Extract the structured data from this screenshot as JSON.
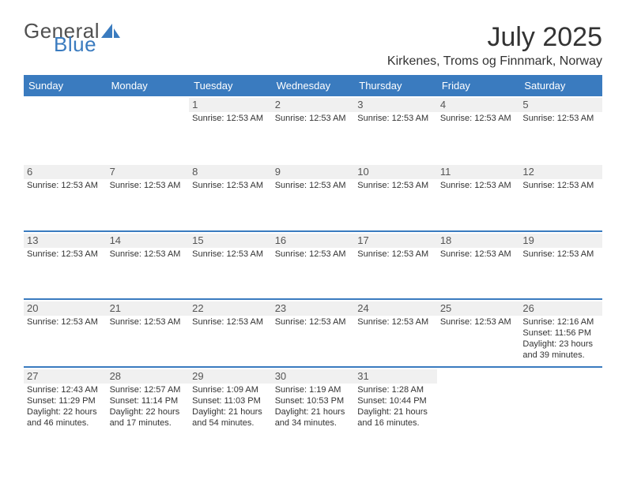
{
  "logo": {
    "text1": "General",
    "text2": "Blue"
  },
  "title": "July 2025",
  "subtitle": "Kirkenes, Troms og Finnmark, Norway",
  "headers_bg": "#3a7bbf",
  "daynum_bg": "#f0f0f0",
  "border_color": "#3a7bbf",
  "days": [
    "Sunday",
    "Monday",
    "Tuesday",
    "Wednesday",
    "Thursday",
    "Friday",
    "Saturday"
  ],
  "weeks": [
    [
      {
        "n": "",
        "t": ""
      },
      {
        "n": "",
        "t": ""
      },
      {
        "n": "1",
        "t": "Sunrise: 12:53 AM"
      },
      {
        "n": "2",
        "t": "Sunrise: 12:53 AM"
      },
      {
        "n": "3",
        "t": "Sunrise: 12:53 AM"
      },
      {
        "n": "4",
        "t": "Sunrise: 12:53 AM"
      },
      {
        "n": "5",
        "t": "Sunrise: 12:53 AM"
      }
    ],
    [
      {
        "n": "6",
        "t": "Sunrise: 12:53 AM"
      },
      {
        "n": "7",
        "t": "Sunrise: 12:53 AM"
      },
      {
        "n": "8",
        "t": "Sunrise: 12:53 AM"
      },
      {
        "n": "9",
        "t": "Sunrise: 12:53 AM"
      },
      {
        "n": "10",
        "t": "Sunrise: 12:53 AM"
      },
      {
        "n": "11",
        "t": "Sunrise: 12:53 AM"
      },
      {
        "n": "12",
        "t": "Sunrise: 12:53 AM"
      }
    ],
    [
      {
        "n": "13",
        "t": "Sunrise: 12:53 AM"
      },
      {
        "n": "14",
        "t": "Sunrise: 12:53 AM"
      },
      {
        "n": "15",
        "t": "Sunrise: 12:53 AM"
      },
      {
        "n": "16",
        "t": "Sunrise: 12:53 AM"
      },
      {
        "n": "17",
        "t": "Sunrise: 12:53 AM"
      },
      {
        "n": "18",
        "t": "Sunrise: 12:53 AM"
      },
      {
        "n": "19",
        "t": "Sunrise: 12:53 AM"
      }
    ],
    [
      {
        "n": "20",
        "t": "Sunrise: 12:53 AM"
      },
      {
        "n": "21",
        "t": "Sunrise: 12:53 AM"
      },
      {
        "n": "22",
        "t": "Sunrise: 12:53 AM"
      },
      {
        "n": "23",
        "t": "Sunrise: 12:53 AM"
      },
      {
        "n": "24",
        "t": "Sunrise: 12:53 AM"
      },
      {
        "n": "25",
        "t": "Sunrise: 12:53 AM"
      },
      {
        "n": "26",
        "t": "Sunrise: 12:16 AM\nSunset: 11:56 PM\nDaylight: 23 hours and 39 minutes."
      }
    ],
    [
      {
        "n": "27",
        "t": "Sunrise: 12:43 AM\nSunset: 11:29 PM\nDaylight: 22 hours and 46 minutes."
      },
      {
        "n": "28",
        "t": "Sunrise: 12:57 AM\nSunset: 11:14 PM\nDaylight: 22 hours and 17 minutes."
      },
      {
        "n": "29",
        "t": "Sunrise: 1:09 AM\nSunset: 11:03 PM\nDaylight: 21 hours and 54 minutes."
      },
      {
        "n": "30",
        "t": "Sunrise: 1:19 AM\nSunset: 10:53 PM\nDaylight: 21 hours and 34 minutes."
      },
      {
        "n": "31",
        "t": "Sunrise: 1:28 AM\nSunset: 10:44 PM\nDaylight: 21 hours and 16 minutes."
      },
      {
        "n": "",
        "t": ""
      },
      {
        "n": "",
        "t": ""
      }
    ]
  ]
}
